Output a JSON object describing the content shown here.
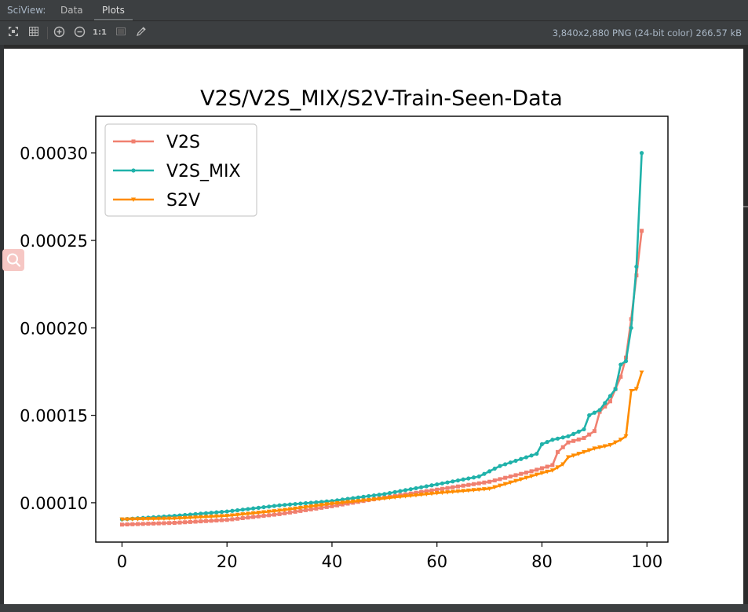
{
  "topbar": {
    "app_label": "SciView:",
    "tabs": [
      "Data",
      "Plots"
    ],
    "active_tab": "Plots"
  },
  "toolbar": {
    "icons": [
      "fit-screen-icon",
      "grid-icon",
      "zoom-in-icon",
      "zoom-out-icon",
      "actual-size-icon",
      "background-toggle-icon",
      "color-picker-icon"
    ],
    "actual_size_label": "1:1",
    "file_info": "3,840x2,880 PNG (24-bit color) 266.57 kB"
  },
  "chart_data": {
    "type": "line",
    "title": "V2S/V2S_MIX/S2V-Train-Seen-Data",
    "xlabel": "",
    "ylabel": "",
    "xlim": [
      -5,
      104
    ],
    "ylim": [
      7.75e-05,
      0.000321
    ],
    "xticks": [
      0,
      20,
      40,
      60,
      80,
      100
    ],
    "xtick_labels": [
      "0",
      "20",
      "40",
      "60",
      "80",
      "100"
    ],
    "yticks": [
      0.0001,
      0.00015,
      0.0002,
      0.00025,
      0.0003
    ],
    "ytick_labels": [
      "0.00010",
      "0.00015",
      "0.00020",
      "0.00025",
      "0.00030"
    ],
    "legend_position": "upper-left",
    "grid": false,
    "series": [
      {
        "name": "V2S",
        "color": "#f08070",
        "marker": "square",
        "knots": [
          [
            0,
            8.75e-05
          ],
          [
            10,
            8.85e-05
          ],
          [
            20,
            9.02e-05
          ],
          [
            30,
            9.35e-05
          ],
          [
            40,
            9.8e-05
          ],
          [
            50,
            0.000103
          ],
          [
            60,
            0.0001075
          ],
          [
            70,
            0.000112
          ],
          [
            78,
            0.000118
          ],
          [
            82,
            0.0001215
          ],
          [
            83,
            0.000129
          ],
          [
            85,
            0.0001345
          ],
          [
            88,
            0.000137
          ],
          [
            90,
            0.000141
          ],
          [
            91,
            0.000152
          ],
          [
            93,
            0.000158
          ],
          [
            95,
            0.000172
          ],
          [
            96,
            0.000183
          ],
          [
            97,
            0.000205
          ],
          [
            98,
            0.00023
          ],
          [
            99,
            0.0002555
          ]
        ]
      },
      {
        "name": "V2S_MIX",
        "color": "#20b2aa",
        "marker": "circle",
        "knots": [
          [
            0,
            9.05e-05
          ],
          [
            10,
            9.25e-05
          ],
          [
            20,
            9.5e-05
          ],
          [
            30,
            9.85e-05
          ],
          [
            40,
            0.000101
          ],
          [
            50,
            0.000105
          ],
          [
            60,
            0.0001105
          ],
          [
            68,
            0.000115
          ],
          [
            72,
            0.000121
          ],
          [
            75,
            0.000124
          ],
          [
            79,
            0.000128
          ],
          [
            80,
            0.0001335
          ],
          [
            82,
            0.000136
          ],
          [
            85,
            0.000138
          ],
          [
            88,
            0.000142
          ],
          [
            89,
            0.00015
          ],
          [
            91,
            0.000153
          ],
          [
            94,
            0.000165
          ],
          [
            95,
            0.000179
          ],
          [
            96,
            0.000181
          ],
          [
            97,
            0.0002
          ],
          [
            98,
            0.000235
          ],
          [
            99,
            0.0003
          ]
        ]
      },
      {
        "name": "S2V",
        "color": "#ff8c00",
        "marker": "triangle-down",
        "knots": [
          [
            0,
            9.05e-05
          ],
          [
            10,
            9.1e-05
          ],
          [
            20,
            9.25e-05
          ],
          [
            30,
            9.55e-05
          ],
          [
            40,
            9.95e-05
          ],
          [
            50,
            0.0001025
          ],
          [
            60,
            0.0001055
          ],
          [
            70,
            0.000108
          ],
          [
            75,
            0.0001125
          ],
          [
            80,
            0.000117
          ],
          [
            82,
            0.0001185
          ],
          [
            84,
            0.000122
          ],
          [
            85,
            0.000126
          ],
          [
            88,
            0.000129
          ],
          [
            90,
            0.000131
          ],
          [
            93,
            0.000133
          ],
          [
            95,
            0.000136
          ],
          [
            96,
            0.000138
          ],
          [
            97,
            0.000164
          ],
          [
            98,
            0.000165
          ],
          [
            99,
            0.0001745
          ]
        ]
      }
    ]
  }
}
